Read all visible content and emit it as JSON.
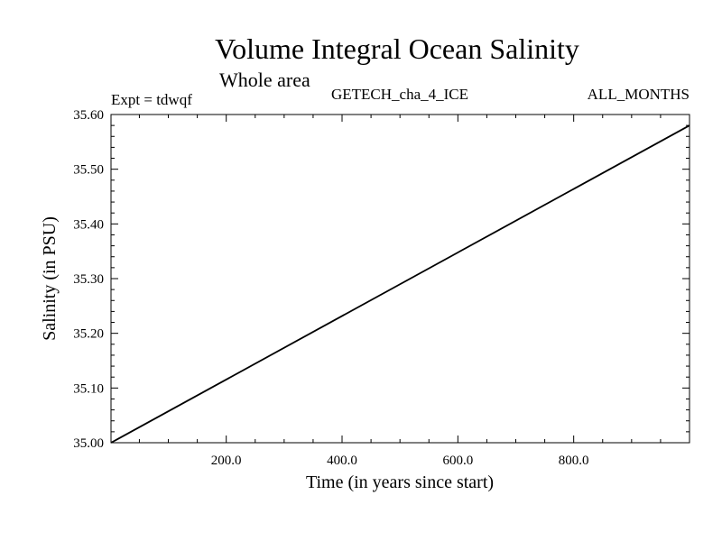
{
  "chart_data": {
    "type": "line",
    "title": "Volume Integral Ocean Salinity",
    "subtitle": "Whole area",
    "annotations": {
      "left": "Expt = tdwqf",
      "center": "GETECH_cha_4_ICE",
      "right": "ALL_MONTHS"
    },
    "xlabel": "Time (in years since start)",
    "ylabel": "Salinity (in PSU)",
    "xlim": [
      1,
      1000
    ],
    "ylim": [
      35.0,
      35.6
    ],
    "xticks": [
      200,
      400,
      600,
      800
    ],
    "xtick_labels": [
      "200.0",
      "400.0",
      "600.0",
      "800.0"
    ],
    "yticks": [
      35.0,
      35.1,
      35.2,
      35.3,
      35.4,
      35.5,
      35.6
    ],
    "ytick_labels": [
      "35.00",
      "35.10",
      "35.20",
      "35.30",
      "35.40",
      "35.50",
      "35.60"
    ],
    "grid": false,
    "series": [
      {
        "x": [
          1,
          1000
        ],
        "y": [
          35.0,
          35.58
        ]
      }
    ],
    "colors": {
      "line": "#000000",
      "axes": "#000000",
      "background": "#ffffff"
    }
  }
}
